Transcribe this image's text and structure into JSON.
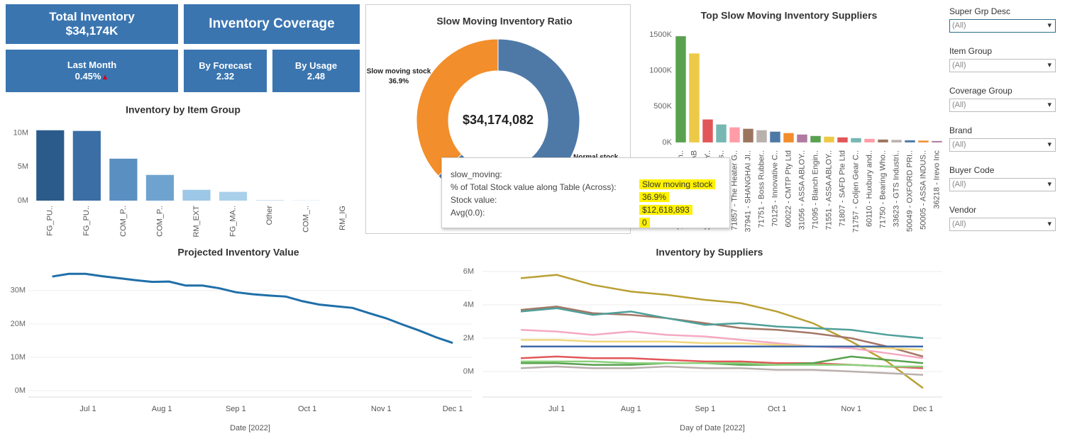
{
  "kpis": [
    {
      "title": "Total Inventory",
      "value": "$34,174K"
    },
    {
      "title": "Inventory Coverage"
    },
    {
      "title": "Last Month",
      "value": "0.45%"
    },
    {
      "title": "By Forecast",
      "value": "2.32"
    },
    {
      "title": "By Usage",
      "value": "2.48"
    }
  ],
  "chart_data": [
    {
      "type": "bar",
      "title": "Inventory by Item Group",
      "categories": [
        "FG_PU..",
        "FG_PU..",
        "COM_P..",
        "COM_P..",
        "RM_EXT",
        "FG_MA..",
        "Other",
        "COM_..",
        "RM_IG"
      ],
      "values": [
        10.4,
        10.3,
        6.2,
        3.8,
        1.6,
        1.3,
        0.1,
        0.05,
        0
      ],
      "colors": [
        "#2b5b8a",
        "#3a6ea5",
        "#5a8fc1",
        "#6fa3cf",
        "#9cc7e6",
        "#a9d0ea",
        "#c5dff0",
        "#d3e6f3",
        "#e0eef8"
      ],
      "ylim": [
        0,
        11
      ],
      "yticks": [
        {
          "value": 0,
          "label": "0M"
        },
        {
          "value": 5,
          "label": "5M"
        },
        {
          "value": 10,
          "label": "10M"
        }
      ],
      "grid": false
    },
    {
      "type": "pie",
      "title": "Slow Moving Inventory Ratio",
      "center_label": "$34,174,082",
      "categories": [
        "Slow moving stock",
        "Normal stock"
      ],
      "values": [
        36.9,
        63.1
      ],
      "value_labels": [
        "36.9%",
        null
      ],
      "colors": [
        "#f28e2b",
        "#4e79a7"
      ]
    },
    {
      "type": "bar",
      "title": "Top Slow Moving Inventory Suppliers",
      "categories": [
        "70906 - Climax Techn..",
        "32796 - ASSA AB",
        "33856 - ASSA ABLOY..",
        "32849 - National Las..",
        "71857 - The Heater G..",
        "37941 - SHANGHAI JI..",
        "71751 - Boss Rubber..",
        "70125 - Innovative C..",
        "60022 - CMTP Pty Ltd",
        "31056 - ASSA ABLOY..",
        "71095 - Blanch Engin..",
        "71551 - ASSA ABLOY..",
        "71807 - SAFD Pte Ltd",
        "71757 - Coljen Gear C..",
        "60110 - Huxbury and..",
        "71750 - Bearing Who..",
        "33623 - GTS Industri..",
        "50049 - OXFORD PRI..",
        "50005 - ASSA INDUS..",
        "36218 - Irevo Inc"
      ],
      "values": [
        1480,
        1240,
        320,
        250,
        210,
        190,
        170,
        150,
        130,
        110,
        90,
        80,
        70,
        60,
        50,
        40,
        35,
        30,
        25,
        20
      ],
      "colors": [
        "#59a14f",
        "#edc948",
        "#e15759",
        "#76b7b2",
        "#ff9da7",
        "#9c755f",
        "#bab0ac",
        "#4e79a7",
        "#f28e2b",
        "#b07aa1",
        "#59a14f",
        "#edc948",
        "#e15759",
        "#76b7b2",
        "#ff9da7",
        "#9c755f",
        "#bab0ac",
        "#4e79a7",
        "#f28e2b",
        "#b07aa1"
      ],
      "ylim": [
        -100,
        1560
      ],
      "yticks": [
        {
          "value": 0,
          "label": "0K"
        },
        {
          "value": 500,
          "label": "500K"
        },
        {
          "value": 1000,
          "label": "1000K"
        },
        {
          "value": 1500,
          "label": "1500K"
        }
      ],
      "grid": false
    },
    {
      "type": "line",
      "title": "Projected Inventory Value",
      "x_label": "Date [2022]",
      "x": [
        "2022-06-16",
        "2022-06-23",
        "2022-06-30",
        "2022-07-07",
        "2022-07-14",
        "2022-07-21",
        "2022-07-28",
        "2022-08-04",
        "2022-08-11",
        "2022-08-18",
        "2022-08-25",
        "2022-09-01",
        "2022-09-08",
        "2022-09-15",
        "2022-09-22",
        "2022-09-29",
        "2022-10-06",
        "2022-10-13",
        "2022-10-20",
        "2022-10-27",
        "2022-11-03",
        "2022-11-10",
        "2022-11-17",
        "2022-11-24",
        "2022-12-01"
      ],
      "series": [
        {
          "color": "#1f6fa8",
          "values": [
            34.2,
            35,
            35,
            34.3,
            33.7,
            33.1,
            32.6,
            32.7,
            31.5,
            31.5,
            30.7,
            29.5,
            28.9,
            28.5,
            28.2,
            26.8,
            25.8,
            25.3,
            24.8,
            23.2,
            21.7,
            19.8,
            18,
            16,
            14.3
          ]
        }
      ],
      "xlim": [
        "2022-06-06",
        "2022-12-09"
      ],
      "xticks": [
        {
          "value": "2022-07-01",
          "label": "Jul 1"
        },
        {
          "value": "2022-08-01",
          "label": "Aug 1"
        },
        {
          "value": "2022-09-01",
          "label": "Sep 1"
        },
        {
          "value": "2022-10-01",
          "label": "Oct 1"
        },
        {
          "value": "2022-11-01",
          "label": "Nov 1"
        },
        {
          "value": "2022-12-01",
          "label": "Dec 1"
        }
      ],
      "ylim": [
        -1.9,
        37.4
      ],
      "yticks": [
        {
          "value": 0,
          "label": "0M"
        },
        {
          "value": 10,
          "label": "10M"
        },
        {
          "value": 20,
          "label": "20M"
        },
        {
          "value": 30,
          "label": "30M"
        }
      ],
      "grid": true
    },
    {
      "type": "line",
      "title": "Inventory by Suppliers",
      "x_label": "Day of Date [2022]",
      "x": [
        "2022-06-16",
        "2022-07-01",
        "2022-07-16",
        "2022-08-01",
        "2022-08-16",
        "2022-09-01",
        "2022-09-16",
        "2022-10-01",
        "2022-10-16",
        "2022-11-01",
        "2022-11-16",
        "2022-12-01"
      ],
      "series": [
        {
          "color": "#b9a033",
          "values": [
            5.6,
            5.8,
            5.2,
            4.8,
            4.6,
            4.3,
            4.1,
            3.6,
            2.9,
            1.8,
            0.6,
            -1.0
          ]
        },
        {
          "color": "#a47766",
          "values": [
            3.7,
            3.9,
            3.5,
            3.4,
            3.2,
            2.9,
            2.6,
            2.5,
            2.3,
            2.0,
            1.5,
            0.9
          ]
        },
        {
          "color": "#4e9f9a",
          "values": [
            3.6,
            3.8,
            3.4,
            3.6,
            3.2,
            2.8,
            2.9,
            2.7,
            2.6,
            2.5,
            2.2,
            2.0
          ]
        },
        {
          "color": "#f4a9c0",
          "values": [
            2.5,
            2.4,
            2.2,
            2.4,
            2.2,
            2.1,
            1.9,
            1.7,
            1.5,
            1.4,
            1.1,
            0.8
          ]
        },
        {
          "color": "#f1d77e",
          "values": [
            1.9,
            1.9,
            1.8,
            1.8,
            1.8,
            1.7,
            1.7,
            1.6,
            1.5,
            1.5,
            1.4,
            1.3
          ]
        },
        {
          "color": "#3d6aa8",
          "values": [
            1.5,
            1.5,
            1.5,
            1.5,
            1.5,
            1.5,
            1.5,
            1.5,
            1.5,
            1.5,
            1.5,
            1.5
          ]
        },
        {
          "color": "#e15759",
          "values": [
            0.8,
            0.9,
            0.8,
            0.8,
            0.7,
            0.6,
            0.6,
            0.5,
            0.5,
            0.4,
            0.3,
            0.2
          ]
        },
        {
          "color": "#59a14f",
          "values": [
            0.5,
            0.5,
            0.4,
            0.4,
            0.5,
            0.5,
            0.4,
            0.4,
            0.5,
            0.9,
            0.7,
            0.5
          ]
        },
        {
          "color": "#bab0ac",
          "values": [
            0.2,
            0.3,
            0.2,
            0.2,
            0.3,
            0.2,
            0.2,
            0.1,
            0.1,
            0.0,
            -0.1,
            -0.2
          ]
        },
        {
          "color": "#8cd17d",
          "values": [
            0.6,
            0.6,
            0.6,
            0.5,
            0.5,
            0.5,
            0.5,
            0.4,
            0.4,
            0.4,
            0.3,
            0.3
          ]
        }
      ],
      "xlim": [
        "2022-05-31",
        "2022-12-09"
      ],
      "xticks": [
        {
          "value": "2022-07-01",
          "label": "Jul 1"
        },
        {
          "value": "2022-08-01",
          "label": "Aug 1"
        },
        {
          "value": "2022-09-01",
          "label": "Sep 1"
        },
        {
          "value": "2022-10-01",
          "label": "Oct 1"
        },
        {
          "value": "2022-11-01",
          "label": "Nov 1"
        },
        {
          "value": "2022-12-01",
          "label": "Dec 1"
        }
      ],
      "ylim": [
        -1.53,
        6.34
      ],
      "yticks": [
        {
          "value": 0,
          "label": "0M"
        },
        {
          "value": 2,
          "label": "2M"
        },
        {
          "value": 4,
          "label": "4M"
        },
        {
          "value": 6,
          "label": "6M"
        }
      ],
      "grid": true
    }
  ],
  "filters": [
    {
      "label": "Super Grp Desc",
      "value": "(All)"
    },
    {
      "label": "Item Group",
      "value": "(All)"
    },
    {
      "label": "Coverage Group",
      "value": "(All)"
    },
    {
      "label": "Brand",
      "value": "(All)"
    },
    {
      "label": "Buyer Code",
      "value": "(All)"
    },
    {
      "label": "Vendor",
      "value": "(All)"
    }
  ],
  "tooltip": [
    [
      "slow_moving:",
      "Slow moving stock"
    ],
    [
      "% of Total Stock value along Table (Across):",
      "36.9%"
    ],
    [
      "Stock value:",
      "$12,618,893"
    ],
    [
      "Avg(0.0):",
      "0"
    ]
  ]
}
